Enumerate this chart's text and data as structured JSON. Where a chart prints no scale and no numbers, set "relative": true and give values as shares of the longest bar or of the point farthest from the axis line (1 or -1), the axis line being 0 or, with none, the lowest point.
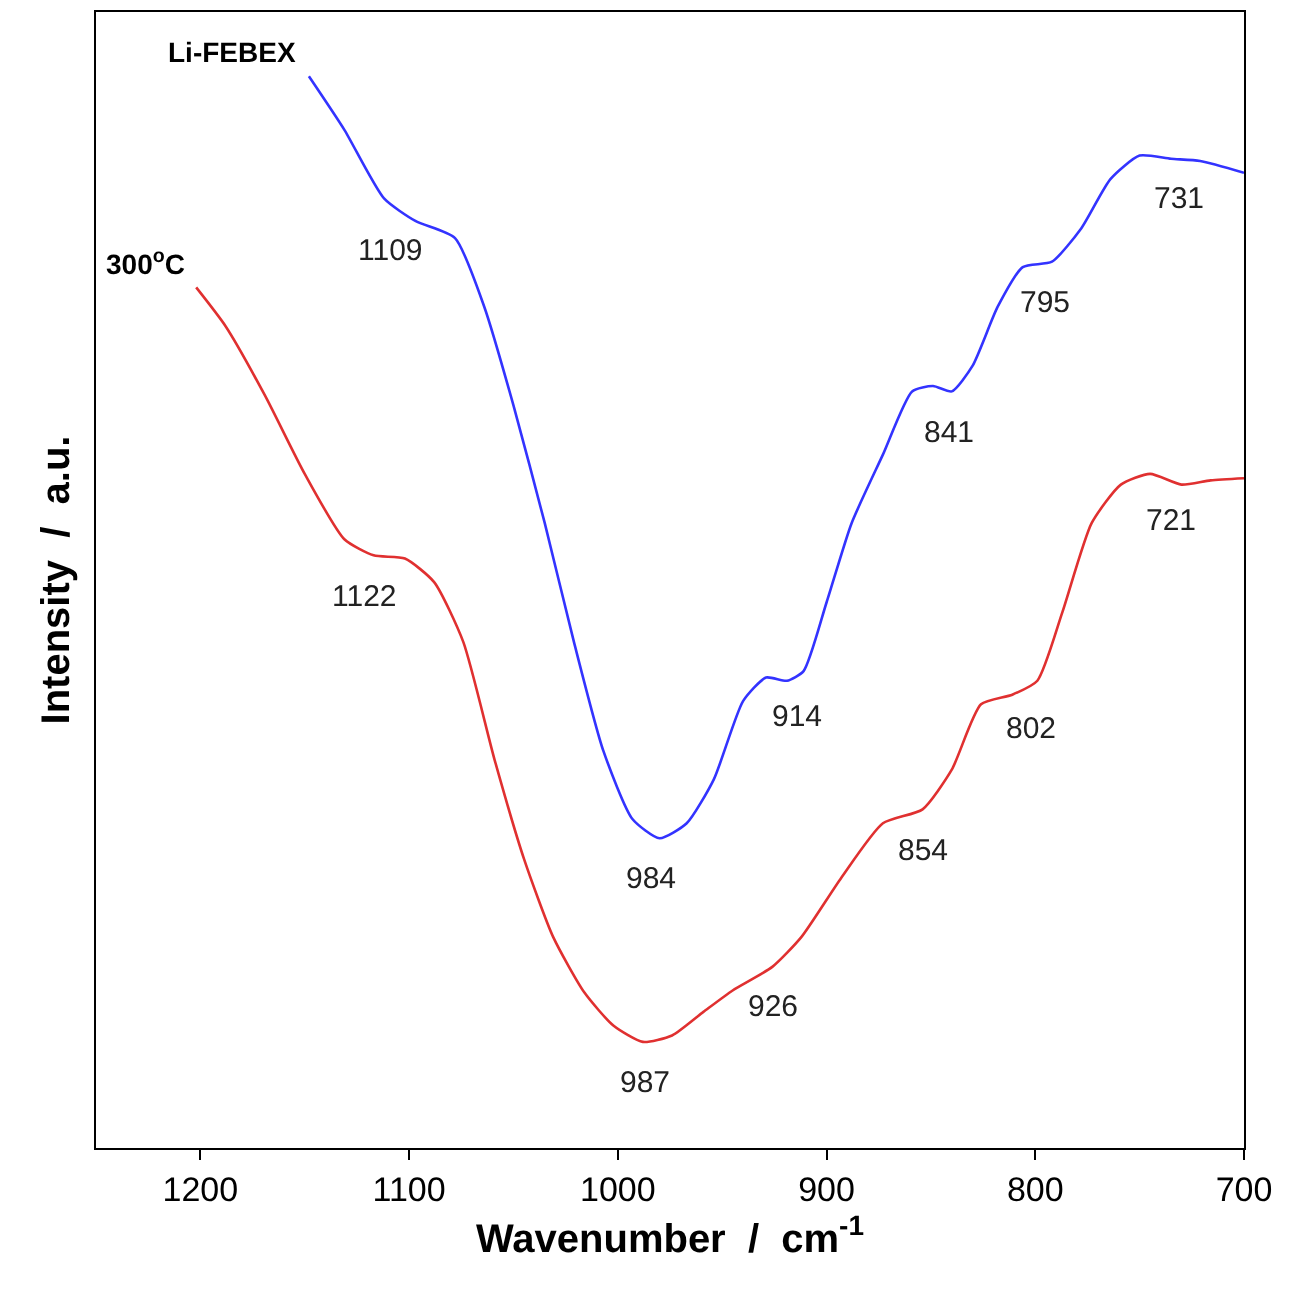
{
  "chart_data": {
    "type": "line",
    "relative": true,
    "xlabel": "Wavenumber  /  cm$^{-1}$",
    "ylabel": "Intensity  /  a.u.",
    "xlim": [
      1250,
      700
    ],
    "xticks": [
      1200,
      1100,
      1000,
      900,
      800,
      700
    ],
    "tick_labels": "x",
    "legend": false,
    "marker": "none",
    "line_style": "solid",
    "series": [
      {
        "name": "Li-FEBEX",
        "color": "#3333ff",
        "x": [
          1148,
          1131,
          1112,
          1097,
          1078,
          1064,
          1050,
          1035,
          1021,
          1007,
          993,
          980,
          967,
          954,
          940,
          929,
          919,
          911,
          900,
          888,
          873,
          859,
          849,
          840,
          830,
          818,
          806,
          792,
          778,
          764,
          750,
          735,
          721,
          700
        ],
        "values": [
          1.0,
          0.95,
          0.886,
          0.865,
          0.849,
          0.785,
          0.693,
          0.583,
          0.472,
          0.371,
          0.307,
          0.289,
          0.303,
          0.344,
          0.417,
          0.439,
          0.436,
          0.445,
          0.509,
          0.583,
          0.647,
          0.706,
          0.711,
          0.706,
          0.73,
          0.785,
          0.822,
          0.827,
          0.858,
          0.904,
          0.926,
          0.923,
          0.921,
          0.91
        ]
      },
      {
        "name": "300$^{o}$C",
        "color": "#e03030",
        "x": [
          1202,
          1188,
          1169,
          1150,
          1131,
          1117,
          1102,
          1088,
          1074,
          1059,
          1045,
          1031,
          1016,
          1002,
          988,
          974,
          959,
          945,
          926,
          912,
          893,
          873,
          854,
          840,
          826,
          811,
          799,
          787,
          773,
          759,
          745,
          730,
          716,
          700
        ],
        "values": [
          0.803,
          0.767,
          0.702,
          0.629,
          0.568,
          0.553,
          0.55,
          0.528,
          0.472,
          0.362,
          0.27,
          0.197,
          0.145,
          0.114,
          0.099,
          0.105,
          0.127,
          0.147,
          0.169,
          0.197,
          0.252,
          0.303,
          0.316,
          0.353,
          0.414,
          0.423,
          0.436,
          0.5,
          0.583,
          0.619,
          0.629,
          0.619,
          0.623,
          0.625
        ]
      }
    ],
    "annotations": [
      {
        "text": "1109",
        "x": 1109,
        "y": 0.875
      },
      {
        "text": "984",
        "x": 984,
        "y": 0.289
      },
      {
        "text": "914",
        "x": 914,
        "y": 0.44
      },
      {
        "text": "841",
        "x": 841,
        "y": 0.706
      },
      {
        "text": "795",
        "x": 795,
        "y": 0.827
      },
      {
        "text": "731",
        "x": 731,
        "y": 0.923
      },
      {
        "text": "1122",
        "x": 1122,
        "y": 0.553
      },
      {
        "text": "987",
        "x": 987,
        "y": 0.099
      },
      {
        "text": "926",
        "x": 926,
        "y": 0.169
      },
      {
        "text": "854",
        "x": 854,
        "y": 0.316
      },
      {
        "text": "802",
        "x": 802,
        "y": 0.43
      },
      {
        "text": "721",
        "x": 721,
        "y": 0.624
      }
    ]
  }
}
